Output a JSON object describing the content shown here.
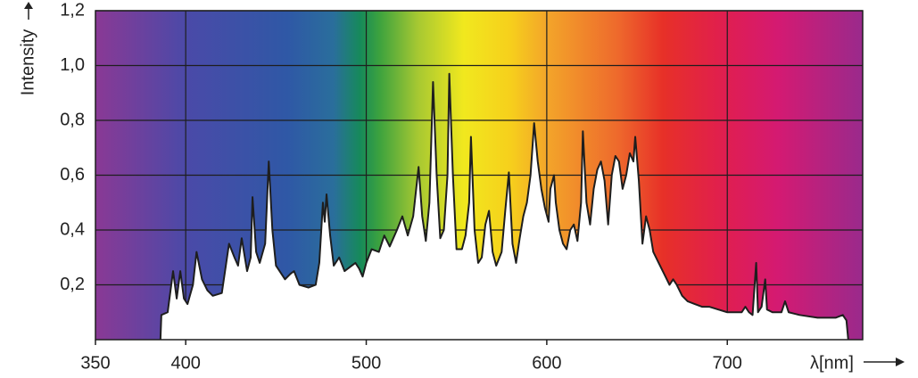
{
  "chart_data": {
    "type": "area",
    "x_label": "λ[nm]",
    "y_label": "Intensity",
    "x": [
      386,
      386.5,
      390,
      393,
      395,
      397,
      399,
      401,
      404,
      406,
      409,
      412,
      415,
      420,
      424,
      427,
      429,
      431,
      434,
      436,
      437,
      439,
      441,
      444,
      446,
      448,
      450,
      455,
      458,
      460,
      463,
      468,
      472,
      474,
      476,
      477,
      478,
      480,
      482,
      485,
      488,
      492,
      494,
      496,
      498,
      500,
      503,
      507,
      510,
      513,
      517,
      520,
      523,
      526,
      529,
      531,
      533,
      535,
      537,
      539,
      541,
      543,
      545,
      546,
      548,
      550,
      553,
      555,
      557,
      558,
      560,
      562,
      564,
      566,
      568,
      570,
      572,
      575,
      577,
      579,
      581,
      583,
      585,
      587,
      589,
      591,
      593,
      595,
      597,
      599,
      601,
      602,
      604,
      605,
      607,
      609,
      611,
      613,
      615,
      617,
      619,
      620,
      622,
      624,
      626,
      628,
      630,
      632,
      634,
      636,
      638,
      640,
      642,
      644,
      646,
      648,
      649,
      651,
      653,
      655,
      657,
      659,
      662,
      665,
      668,
      670,
      672,
      675,
      678,
      682,
      686,
      690,
      695,
      700,
      705,
      708,
      710,
      712,
      714,
      716,
      717,
      719,
      721,
      722,
      725,
      730,
      732,
      734,
      740,
      750,
      760,
      764,
      765,
      766,
      767
    ],
    "values": [
      0,
      0.09,
      0.1,
      0.25,
      0.15,
      0.25,
      0.15,
      0.13,
      0.2,
      0.32,
      0.22,
      0.18,
      0.16,
      0.17,
      0.35,
      0.3,
      0.27,
      0.37,
      0.25,
      0.3,
      0.52,
      0.32,
      0.28,
      0.35,
      0.65,
      0.4,
      0.27,
      0.22,
      0.24,
      0.25,
      0.2,
      0.19,
      0.2,
      0.28,
      0.5,
      0.43,
      0.53,
      0.38,
      0.27,
      0.3,
      0.25,
      0.27,
      0.28,
      0.26,
      0.23,
      0.28,
      0.33,
      0.32,
      0.38,
      0.34,
      0.4,
      0.45,
      0.38,
      0.45,
      0.63,
      0.45,
      0.36,
      0.5,
      0.94,
      0.6,
      0.37,
      0.4,
      0.6,
      0.97,
      0.6,
      0.33,
      0.33,
      0.38,
      0.5,
      0.74,
      0.4,
      0.28,
      0.3,
      0.42,
      0.47,
      0.32,
      0.27,
      0.32,
      0.47,
      0.61,
      0.35,
      0.28,
      0.37,
      0.45,
      0.5,
      0.6,
      0.79,
      0.65,
      0.55,
      0.48,
      0.43,
      0.55,
      0.6,
      0.5,
      0.4,
      0.35,
      0.33,
      0.4,
      0.42,
      0.36,
      0.5,
      0.76,
      0.5,
      0.42,
      0.55,
      0.62,
      0.65,
      0.58,
      0.42,
      0.6,
      0.67,
      0.65,
      0.55,
      0.6,
      0.68,
      0.65,
      0.74,
      0.58,
      0.35,
      0.45,
      0.4,
      0.32,
      0.28,
      0.24,
      0.2,
      0.22,
      0.2,
      0.16,
      0.14,
      0.13,
      0.12,
      0.12,
      0.11,
      0.1,
      0.1,
      0.1,
      0.12,
      0.1,
      0.09,
      0.28,
      0.1,
      0.12,
      0.22,
      0.11,
      0.1,
      0.1,
      0.14,
      0.1,
      0.09,
      0.08,
      0.08,
      0.09,
      0.08,
      0.07,
      0
    ],
    "color": "#ffffff",
    "line_color": "#1e1e1e",
    "xlim": [
      350,
      775
    ],
    "xticks": [
      350,
      400,
      500,
      600,
      700
    ],
    "ylim": [
      0,
      1.2
    ],
    "yticks": [
      {
        "value": 0.2,
        "label": "0,2"
      },
      {
        "value": 0.4,
        "label": "0,4"
      },
      {
        "value": 0.6,
        "label": "0,6"
      },
      {
        "value": 0.8,
        "label": "0,8"
      },
      {
        "value": 1.0,
        "label": "1,0"
      },
      {
        "value": 1.2,
        "label": "1,2"
      }
    ],
    "grid": true
  }
}
